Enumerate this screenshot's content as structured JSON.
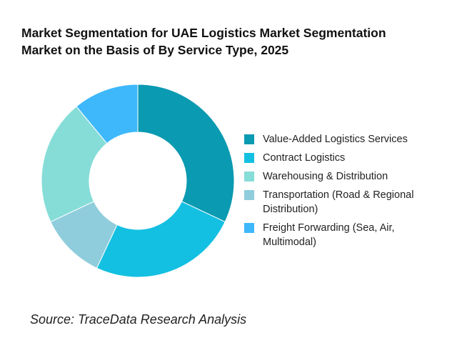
{
  "chart_data": {
    "type": "pie",
    "title_lines": [
      "Market Segmentation for UAE Logistics Market Segmentation",
      "Market on the Basis of By Service Type, 2025"
    ],
    "categories": [
      "Value-Added Logistics Services",
      "Contract Logistics",
      "Warehousing & Distribution",
      "Transportation (Road & Regional Distribution)",
      "Freight Forwarding (Sea, Air, Multimodal)"
    ],
    "legend_labels": [
      [
        "Value-Added Logistics Services"
      ],
      [
        "Contract Logistics"
      ],
      [
        "Warehousing & Distribution"
      ],
      [
        "Transportation (Road & Regional",
        "Distribution)"
      ],
      [
        "Freight Forwarding (Sea, Air,",
        "Multimodal)"
      ]
    ],
    "values": [
      32,
      25,
      21,
      11,
      11
    ],
    "slice_order": [
      0,
      1,
      3,
      2,
      4
    ],
    "colors": [
      "#0a9ab1",
      "#13c0e1",
      "#86ddd8",
      "#8fcddc",
      "#3eb8fb"
    ],
    "legend_placement": "right",
    "donut": true
  },
  "source": "Source: TraceData Research Analysis"
}
